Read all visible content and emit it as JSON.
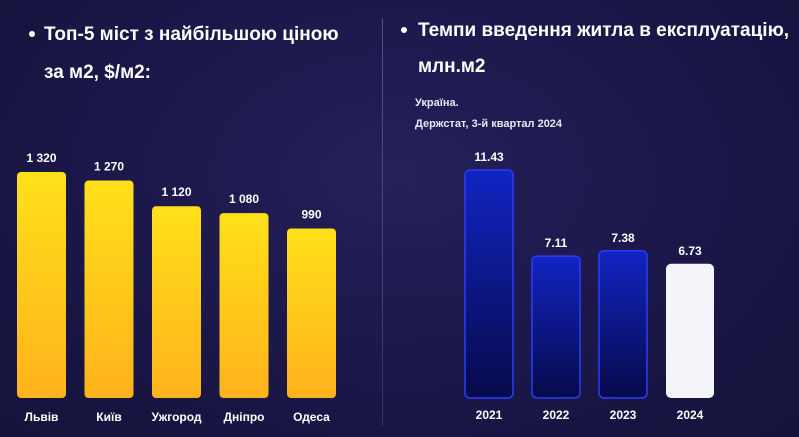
{
  "left_panel": {
    "title_line1": "Топ-5 міст з найбільшою ціною",
    "title_line2": "за м2, $/м2:"
  },
  "right_panel": {
    "title_line1": "Темпи введення житла в експлуатацію,",
    "title_line2": "млн.м2",
    "note_line1": "Україна.",
    "note_line2": "Держстат, 3-й квартал 2024"
  },
  "colors": {
    "gold_top": "#ffe01a",
    "gold_bottom": "#ffb21c",
    "blue_top": "#1124c2",
    "blue_bottom": "#070a4a",
    "blue_border": "#2a3cff",
    "highlight": "#f4f4fa"
  },
  "chart_data": [
    {
      "type": "bar",
      "categories": [
        "Львів",
        "Київ",
        "Ужгород",
        "Дніпро",
        "Одеса"
      ],
      "values": [
        1320,
        1270,
        1120,
        1080,
        990
      ],
      "value_labels": [
        "1 320",
        "1 270",
        "1 120",
        "1 080",
        "990"
      ],
      "title": "Топ-5 міст з найбільшою ціною за м2, $/м2:",
      "ylim": [
        0,
        1320
      ],
      "grid": false
    },
    {
      "type": "bar",
      "categories": [
        "2021",
        "2022",
        "2023",
        "2024"
      ],
      "values": [
        11.43,
        7.11,
        7.38,
        6.73
      ],
      "value_labels": [
        "11.43",
        "7.11",
        "7.38",
        "6.73"
      ],
      "title": "Темпи введення житла в експлуатацію, млн.м2",
      "ylim": [
        0,
        11.43
      ],
      "grid": false
    }
  ]
}
